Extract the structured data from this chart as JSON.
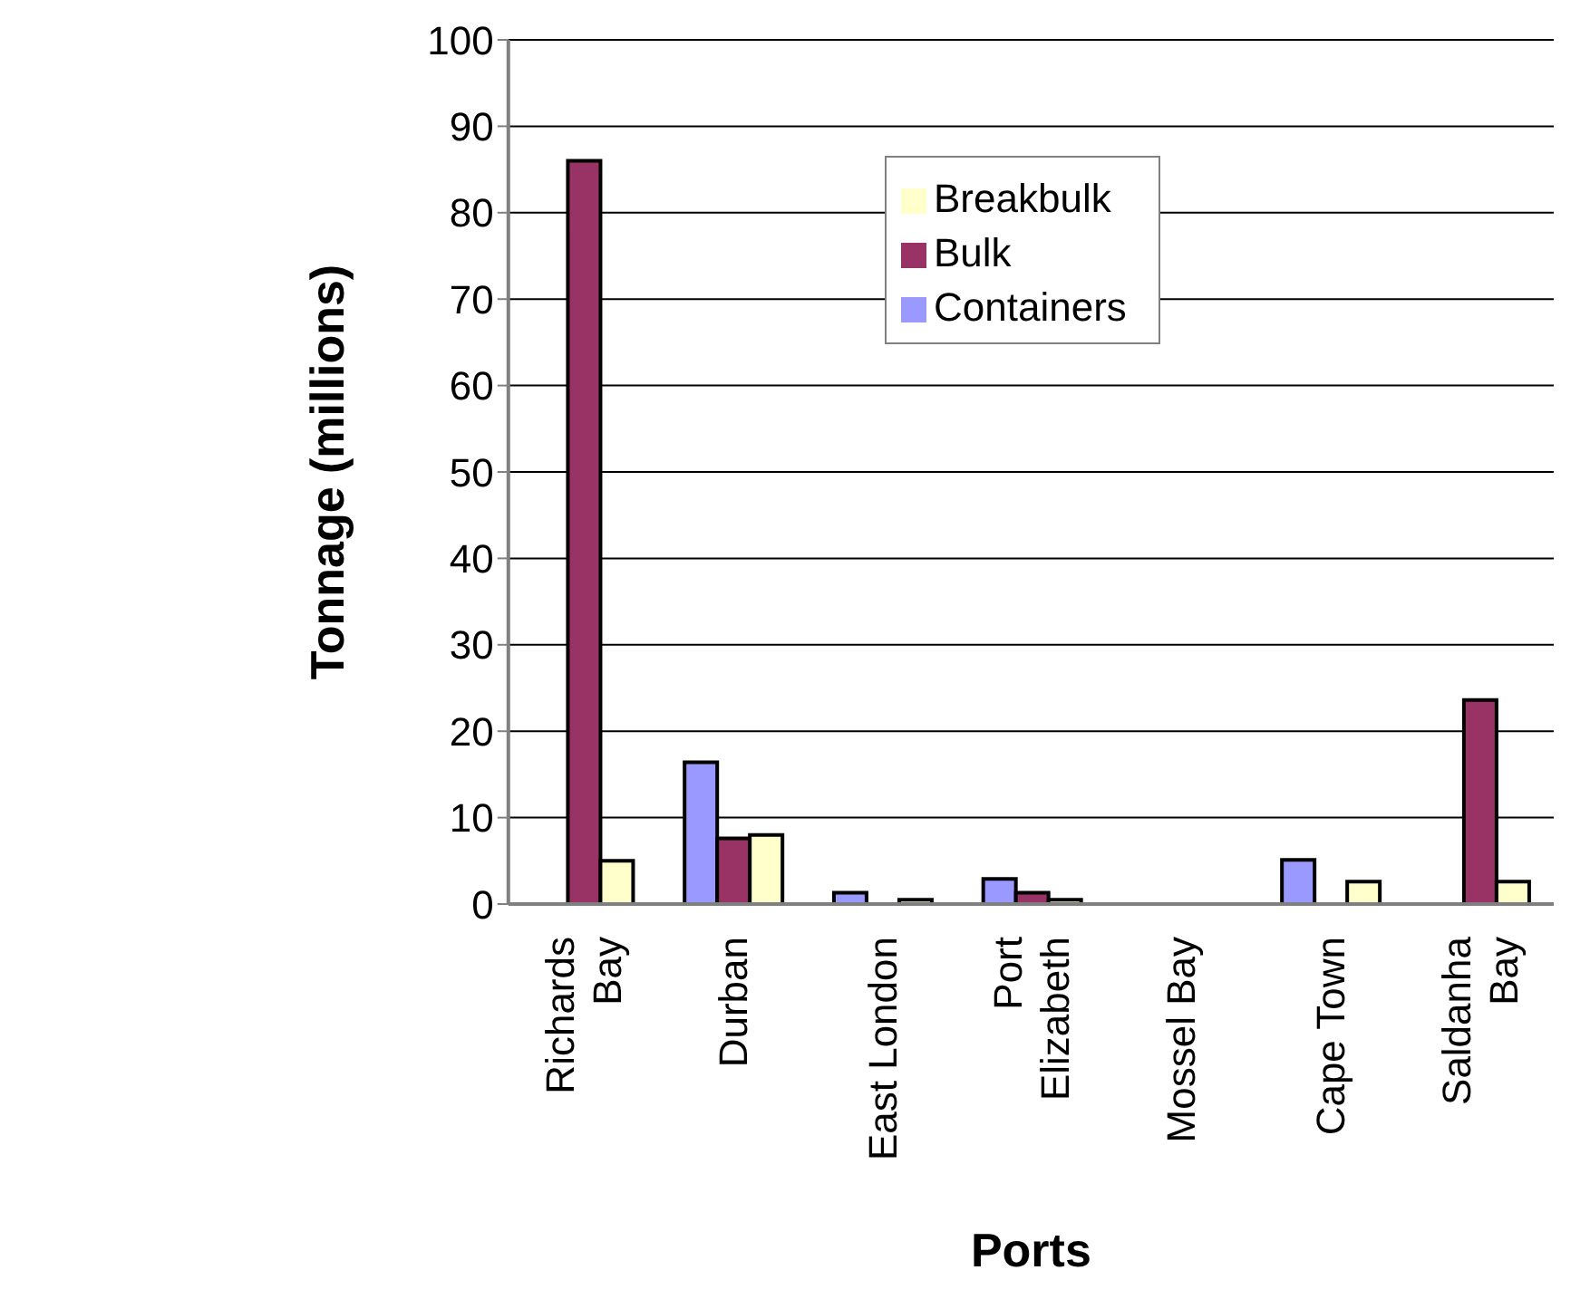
{
  "chart_data": {
    "type": "bar",
    "xlabel": "Ports",
    "ylabel": "Tonnage (millions)",
    "categories": [
      "Richards Bay",
      "Durban",
      "East London",
      "Port Elizabeth",
      "Mossel Bay",
      "Cape Town",
      "Saldanha Bay"
    ],
    "series": [
      {
        "name": "Containers",
        "color": "#9999ff",
        "values": [
          0,
          16.4,
          1.3,
          2.9,
          0,
          5.1,
          0
        ]
      },
      {
        "name": "Bulk",
        "color": "#993366",
        "values": [
          86,
          7.6,
          0,
          1.3,
          0,
          0,
          23.6
        ]
      },
      {
        "name": "Breakbulk",
        "color": "#ffffcc",
        "values": [
          5,
          8,
          0.5,
          0.5,
          0,
          2.6,
          2.6
        ]
      }
    ],
    "ylim": [
      0,
      100
    ],
    "yticks": [
      0,
      10,
      20,
      30,
      40,
      50,
      60,
      70,
      80,
      90,
      100
    ],
    "grid": "y",
    "legend": "top right"
  }
}
